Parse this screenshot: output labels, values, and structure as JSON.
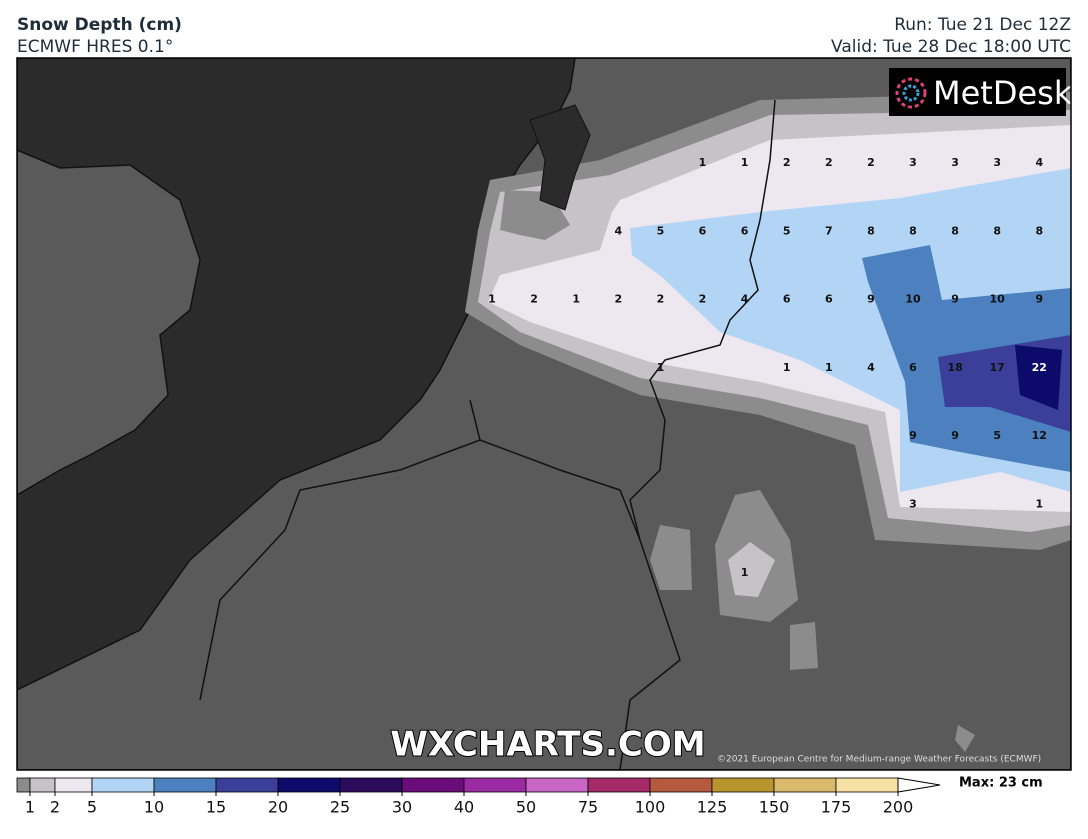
{
  "header": {
    "title": "Snow Depth (cm)",
    "subtitle": "ECMWF HRES 0.1°",
    "run": "Run: Tue 21 Dec 12Z",
    "valid": "Valid: Tue 28 Dec 18:00 UTC"
  },
  "logo": "MetDesk",
  "watermark": "WXCHARTS.COM",
  "copyright": "©2021 European Centre for Medium-range Weather Forecasts (ECMWF)",
  "map_labels": [
    [
      null,
      null,
      null,
      null,
      null,
      1,
      1,
      2,
      2,
      2,
      3,
      3,
      3,
      4
    ],
    [
      null,
      null,
      null,
      4,
      5,
      6,
      6,
      5,
      7,
      8,
      8,
      8,
      8,
      8
    ],
    [
      1,
      2,
      1,
      2,
      2,
      2,
      4,
      6,
      6,
      9,
      10,
      9,
      10,
      9
    ],
    [
      null,
      null,
      null,
      null,
      1,
      null,
      null,
      1,
      1,
      4,
      6,
      18,
      17,
      22
    ],
    [
      null,
      null,
      null,
      null,
      null,
      null,
      null,
      null,
      null,
      null,
      9,
      9,
      5,
      12
    ],
    [
      null,
      null,
      null,
      null,
      null,
      null,
      null,
      null,
      null,
      null,
      3,
      null,
      null,
      1
    ],
    [
      null,
      null,
      null,
      null,
      null,
      null,
      1,
      null,
      null,
      null,
      null,
      null,
      null,
      null
    ]
  ],
  "legend": {
    "colors": [
      "#8c8c8c",
      "#c6c3c6",
      "#ede7ef",
      "#b3d5f5",
      "#4d80bf",
      "#3b3f99",
      "#0c0b6b",
      "#2c0a5c",
      "#6a0c79",
      "#9b2ba3",
      "#c965c4",
      "#a52b68",
      "#b65a3f",
      "#b9962d",
      "#d9ba6c",
      "#f7e0a3",
      "#ffffff"
    ],
    "ticks": [
      1,
      2,
      5,
      10,
      15,
      20,
      25,
      30,
      40,
      50,
      75,
      100,
      125,
      150,
      175,
      200
    ],
    "max_label": "Max: 23 cm"
  }
}
